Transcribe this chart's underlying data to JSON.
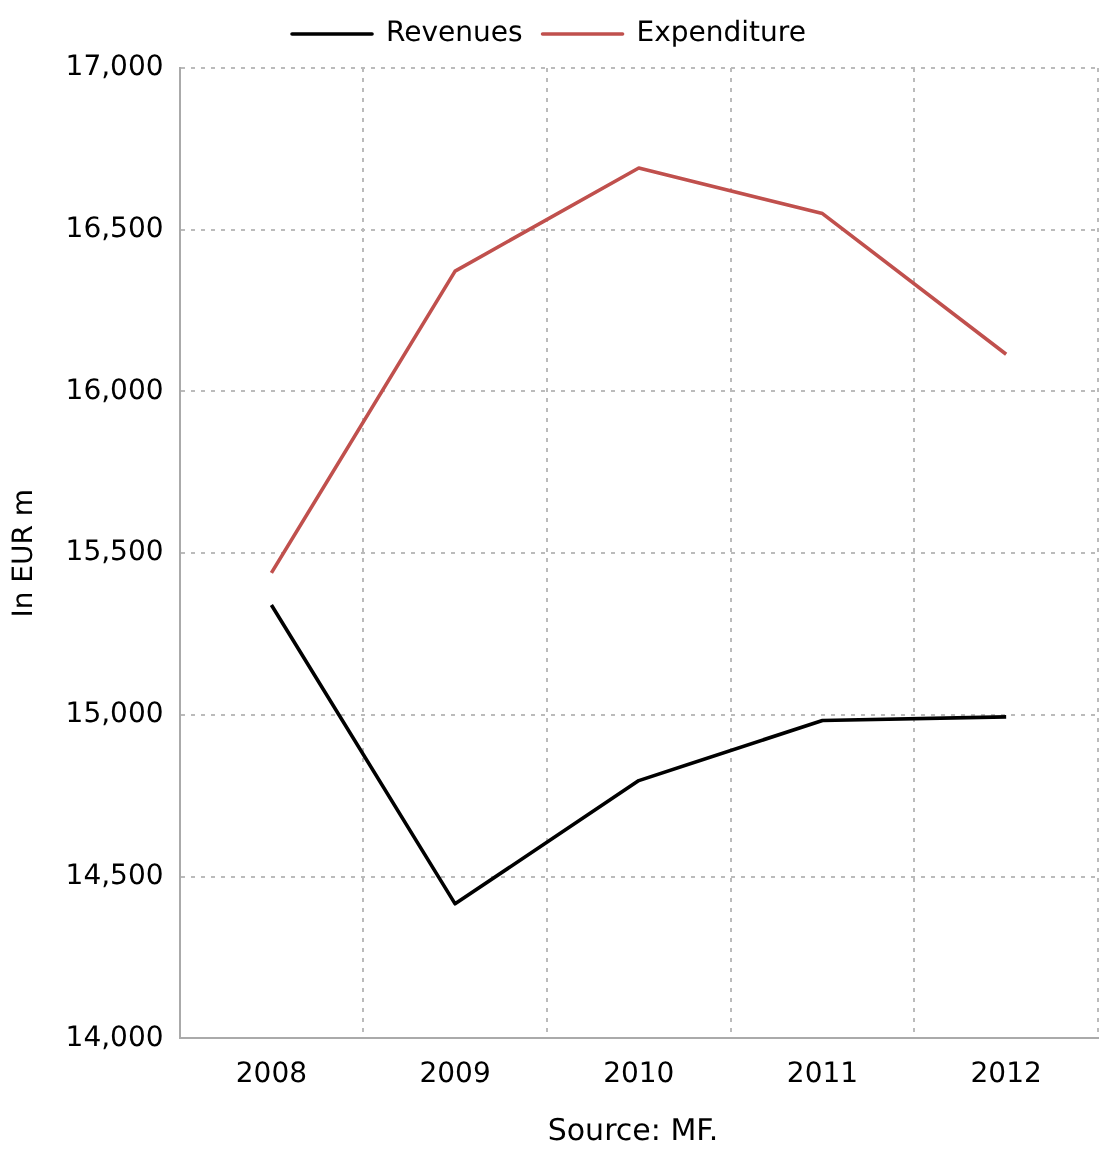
{
  "chart_data": {
    "type": "line",
    "ylabel": "In EUR m",
    "annotations": [
      "Source: MF."
    ],
    "categories": [
      "2008",
      "2009",
      "2010",
      "2011",
      "2012"
    ],
    "series": [
      {
        "name": "Revenues",
        "color": "#000000",
        "values": [
          15340,
          14416,
          14797,
          14983,
          14994
        ]
      },
      {
        "name": "Expenditure",
        "color": "#c0504d",
        "values": [
          15439,
          16372,
          16691,
          16550,
          16115
        ]
      }
    ],
    "ylim": [
      14000,
      17000
    ],
    "yticks": [
      {
        "value": 14000,
        "label": "14,000"
      },
      {
        "value": 14500,
        "label": "14,500"
      },
      {
        "value": 15000,
        "label": "15,000"
      },
      {
        "value": 15500,
        "label": "15,500"
      },
      {
        "value": 16000,
        "label": "16,000"
      },
      {
        "value": 16500,
        "label": "16,500"
      },
      {
        "value": 17000,
        "label": "17,000"
      }
    ],
    "grid": true,
    "legend": "top",
    "marker": "none",
    "line_style": "solid"
  }
}
